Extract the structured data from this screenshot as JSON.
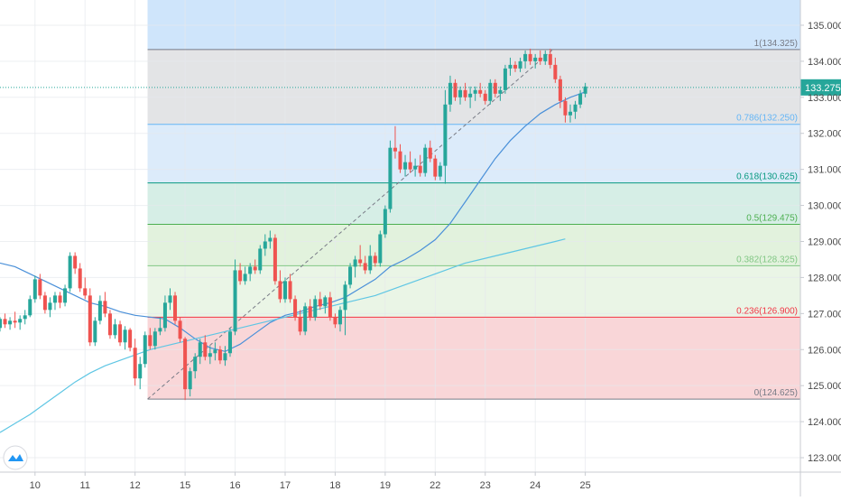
{
  "chart_data": {
    "type": "candlestick",
    "y_axis": {
      "range": [
        122.6,
        135.7
      ],
      "ticks": [
        "123.000",
        "124.000",
        "125.000",
        "126.000",
        "127.000",
        "128.000",
        "129.000",
        "130.000",
        "131.000",
        "132.000",
        "133.000",
        "134.000",
        "135.000"
      ],
      "tick_values": [
        123,
        124,
        125,
        126,
        127,
        128,
        129,
        130,
        131,
        132,
        133,
        134,
        135
      ]
    },
    "x_axis": {
      "range": [
        9.3,
        25.3
      ],
      "ticks": [
        "10",
        "11",
        "12",
        "15",
        "16",
        "17",
        "18",
        "19",
        "22",
        "23",
        "24",
        "25"
      ],
      "tick_values": [
        10,
        11,
        12,
        13,
        14,
        15,
        16,
        17,
        18,
        19,
        20,
        21
      ]
    },
    "grid": true,
    "last_price": {
      "label": "133.275",
      "value": 133.275,
      "color": "#26a69a"
    },
    "fib_levels": [
      {
        "ratio": 1,
        "price": 134.325,
        "label": "1(134.325)",
        "color": "#787b86"
      },
      {
        "ratio": 0.786,
        "price": 132.25,
        "label": "0.786(132.250)",
        "color": "#64b5f6"
      },
      {
        "ratio": 0.618,
        "price": 130.625,
        "label": "0.618(130.625)",
        "color": "#089981"
      },
      {
        "ratio": 0.5,
        "price": 129.475,
        "label": "0.5(129.475)",
        "color": "#4caf50"
      },
      {
        "ratio": 0.382,
        "price": 128.325,
        "label": "0.382(128.325)",
        "color": "#81c784"
      },
      {
        "ratio": 0.236,
        "price": 126.9,
        "label": "0.236(126.900)",
        "color": "#f23645"
      },
      {
        "ratio": 0,
        "price": 124.625,
        "label": "0(124.625)",
        "color": "#787b86"
      }
    ],
    "fib_start_x": 12.25,
    "fib_trend": {
      "from": [
        12.25,
        124.625
      ],
      "to": [
        20.35,
        134.325
      ]
    },
    "zone_colors": {
      "above_1": "#cfe5fb",
      "1_to_0786": "#e3e4e6",
      "0786_to_0618": "#dcebfa",
      "0618_to_05": "#d6eee6",
      "05_to_0382": "#e2f2dd",
      "0382_to_0236": "#eaf5e6",
      "0236_to_0": "#f9d6d8"
    },
    "candles": [
      [
        9.3,
        126.6,
        126.9,
        126.5,
        126.85
      ],
      [
        9.4,
        126.85,
        127.0,
        126.6,
        126.7
      ],
      [
        9.5,
        126.7,
        126.9,
        126.55,
        126.8
      ],
      [
        9.6,
        126.8,
        127.05,
        126.6,
        126.75
      ],
      [
        9.7,
        126.75,
        126.95,
        126.55,
        126.85
      ],
      [
        9.8,
        126.85,
        127.1,
        126.7,
        126.95
      ],
      [
        9.9,
        126.95,
        127.5,
        126.9,
        127.4
      ],
      [
        10.0,
        127.4,
        128.05,
        127.3,
        127.95
      ],
      [
        10.1,
        127.95,
        128.1,
        127.4,
        127.5
      ],
      [
        10.2,
        127.5,
        127.6,
        127.0,
        127.1
      ],
      [
        10.3,
        127.1,
        127.45,
        126.9,
        127.3
      ],
      [
        10.4,
        127.3,
        127.6,
        127.1,
        127.5
      ],
      [
        10.5,
        127.5,
        127.6,
        127.15,
        127.3
      ],
      [
        10.6,
        127.3,
        127.8,
        127.2,
        127.7
      ],
      [
        10.7,
        127.7,
        128.7,
        127.6,
        128.6
      ],
      [
        10.8,
        128.6,
        128.7,
        128.1,
        128.25
      ],
      [
        10.9,
        128.25,
        128.4,
        127.6,
        127.7
      ],
      [
        11.0,
        127.7,
        128.0,
        127.4,
        127.5
      ],
      [
        11.1,
        127.5,
        127.7,
        126.1,
        126.2
      ],
      [
        11.2,
        126.2,
        126.9,
        126.1,
        126.8
      ],
      [
        11.3,
        126.8,
        127.5,
        126.7,
        127.35
      ],
      [
        11.4,
        127.35,
        127.6,
        126.9,
        127.0
      ],
      [
        11.5,
        127.0,
        127.1,
        126.3,
        126.4
      ],
      [
        11.6,
        126.4,
        126.85,
        126.3,
        126.7
      ],
      [
        11.7,
        126.7,
        126.8,
        126.1,
        126.2
      ],
      [
        11.8,
        126.2,
        126.65,
        126.0,
        126.55
      ],
      [
        11.9,
        126.55,
        126.6,
        125.95,
        126.05
      ],
      [
        12.0,
        126.05,
        126.3,
        125.0,
        125.2
      ],
      [
        12.1,
        125.2,
        125.8,
        124.9,
        125.6
      ],
      [
        12.2,
        125.6,
        126.5,
        125.5,
        126.4
      ],
      [
        12.3,
        126.4,
        126.6,
        126.0,
        126.1
      ],
      [
        12.4,
        126.1,
        126.6,
        126.0,
        126.5
      ],
      [
        12.5,
        126.5,
        126.9,
        126.4,
        126.6
      ],
      [
        12.6,
        126.6,
        127.5,
        126.5,
        127.3
      ],
      [
        12.7,
        127.3,
        127.7,
        127.1,
        127.5
      ],
      [
        12.8,
        127.5,
        127.6,
        126.7,
        126.8
      ],
      [
        12.9,
        126.8,
        126.9,
        126.2,
        126.3
      ],
      [
        13.0,
        126.3,
        126.35,
        124.6,
        124.9
      ],
      [
        13.1,
        124.9,
        125.5,
        124.7,
        125.4
      ],
      [
        13.2,
        125.4,
        125.9,
        125.2,
        125.8
      ],
      [
        13.3,
        125.8,
        126.3,
        125.6,
        126.2
      ],
      [
        13.4,
        126.2,
        126.4,
        125.7,
        125.8
      ],
      [
        13.5,
        125.8,
        126.1,
        125.6,
        125.9
      ],
      [
        13.6,
        125.9,
        126.2,
        125.7,
        126.0
      ],
      [
        13.7,
        126.0,
        126.1,
        125.6,
        125.7
      ],
      [
        13.8,
        125.7,
        126.1,
        125.55,
        125.9
      ],
      [
        13.9,
        125.9,
        126.6,
        125.8,
        126.5
      ],
      [
        14.0,
        126.5,
        128.5,
        126.4,
        128.2
      ],
      [
        14.1,
        128.2,
        128.4,
        127.8,
        127.9
      ],
      [
        14.2,
        127.9,
        128.3,
        127.8,
        128.1
      ],
      [
        14.3,
        128.1,
        128.4,
        127.9,
        128.3
      ],
      [
        14.4,
        128.3,
        128.5,
        128.1,
        128.2
      ],
      [
        14.5,
        128.2,
        128.9,
        128.1,
        128.8
      ],
      [
        14.6,
        128.8,
        129.2,
        128.6,
        129.0
      ],
      [
        14.7,
        129.0,
        129.3,
        128.8,
        129.1
      ],
      [
        14.8,
        129.1,
        129.2,
        127.8,
        127.9
      ],
      [
        14.9,
        127.9,
        128.2,
        127.3,
        127.4
      ],
      [
        15.0,
        127.4,
        128.0,
        127.3,
        127.9
      ],
      [
        15.1,
        127.9,
        128.1,
        127.3,
        127.4
      ],
      [
        15.2,
        127.4,
        127.5,
        126.8,
        126.9
      ],
      [
        15.3,
        126.9,
        127.1,
        126.4,
        126.5
      ],
      [
        15.4,
        126.5,
        127.3,
        126.4,
        127.2
      ],
      [
        15.5,
        127.2,
        127.4,
        126.8,
        126.9
      ],
      [
        15.6,
        126.9,
        127.5,
        126.8,
        127.4
      ],
      [
        15.7,
        127.4,
        127.6,
        127.1,
        127.2
      ],
      [
        15.8,
        127.2,
        127.5,
        127.0,
        127.45
      ],
      [
        15.9,
        127.45,
        127.6,
        126.8,
        126.9
      ],
      [
        16.0,
        126.9,
        127.0,
        126.6,
        126.7
      ],
      [
        16.1,
        126.7,
        127.2,
        126.5,
        127.1
      ],
      [
        16.2,
        127.1,
        127.9,
        126.4,
        127.8
      ],
      [
        16.3,
        127.8,
        128.4,
        127.7,
        128.3
      ],
      [
        16.4,
        128.3,
        128.6,
        128.0,
        128.5
      ],
      [
        16.5,
        128.5,
        128.9,
        128.3,
        128.4
      ],
      [
        16.6,
        128.4,
        128.6,
        128.1,
        128.2
      ],
      [
        16.7,
        128.2,
        128.9,
        128.1,
        128.6
      ],
      [
        16.8,
        128.6,
        128.7,
        128.3,
        128.4
      ],
      [
        16.9,
        128.4,
        129.3,
        128.3,
        129.2
      ],
      [
        17.0,
        129.2,
        130.0,
        129.1,
        129.9
      ],
      [
        17.1,
        129.9,
        131.8,
        129.8,
        131.6
      ],
      [
        17.2,
        131.6,
        132.2,
        131.3,
        131.5
      ],
      [
        17.3,
        131.5,
        131.7,
        130.9,
        131.0
      ],
      [
        17.4,
        131.0,
        131.4,
        130.8,
        131.2
      ],
      [
        17.5,
        131.2,
        131.5,
        130.9,
        131.0
      ],
      [
        17.6,
        131.0,
        131.3,
        130.8,
        131.1
      ],
      [
        17.7,
        131.1,
        131.4,
        130.8,
        130.9
      ],
      [
        17.8,
        130.9,
        131.7,
        130.8,
        131.6
      ],
      [
        17.9,
        131.6,
        131.8,
        131.2,
        131.3
      ],
      [
        18.0,
        131.3,
        131.4,
        130.7,
        130.8
      ],
      [
        18.1,
        130.8,
        131.2,
        130.7,
        131.1
      ],
      [
        18.2,
        131.1,
        133.2,
        130.6,
        132.8
      ],
      [
        18.3,
        132.8,
        133.6,
        132.6,
        133.4
      ],
      [
        18.4,
        133.4,
        133.5,
        132.9,
        133.0
      ],
      [
        18.5,
        133.0,
        133.3,
        132.8,
        133.2
      ],
      [
        18.6,
        133.2,
        133.4,
        132.9,
        133.0
      ],
      [
        18.7,
        133.0,
        133.3,
        132.7,
        133.1
      ],
      [
        18.8,
        133.1,
        133.3,
        132.9,
        133.2
      ],
      [
        18.9,
        133.2,
        133.4,
        133.0,
        133.1
      ],
      [
        19.0,
        133.1,
        133.2,
        132.8,
        132.9
      ],
      [
        19.1,
        132.9,
        133.5,
        132.8,
        133.4
      ],
      [
        19.2,
        133.4,
        133.5,
        133.0,
        133.1
      ],
      [
        19.3,
        133.1,
        133.3,
        132.9,
        133.2
      ],
      [
        19.4,
        133.2,
        133.9,
        133.1,
        133.8
      ],
      [
        19.5,
        133.8,
        134.1,
        133.6,
        133.9
      ],
      [
        19.6,
        133.9,
        134.0,
        133.7,
        133.8
      ],
      [
        19.7,
        133.8,
        134.1,
        133.7,
        134.0
      ],
      [
        19.8,
        134.0,
        134.3,
        133.8,
        134.2
      ],
      [
        19.9,
        134.2,
        134.35,
        133.9,
        134.0
      ],
      [
        20.0,
        134.0,
        134.2,
        133.8,
        134.1
      ],
      [
        20.1,
        134.1,
        134.3,
        133.9,
        134.0
      ],
      [
        20.2,
        134.0,
        134.3,
        133.9,
        134.2
      ],
      [
        20.3,
        134.2,
        134.35,
        133.8,
        133.9
      ],
      [
        20.4,
        133.9,
        134.1,
        133.4,
        133.5
      ],
      [
        20.5,
        133.5,
        133.6,
        132.7,
        132.9
      ],
      [
        20.6,
        132.9,
        133.0,
        132.3,
        132.5
      ],
      [
        20.7,
        132.5,
        132.8,
        132.3,
        132.6
      ],
      [
        20.8,
        132.6,
        132.9,
        132.4,
        132.8
      ],
      [
        20.9,
        132.8,
        133.2,
        132.7,
        133.1
      ],
      [
        21.0,
        133.1,
        133.4,
        133.0,
        133.3
      ]
    ],
    "ma_series": [
      {
        "color": "#4a90d9",
        "points": [
          [
            9.3,
            128.4
          ],
          [
            9.6,
            128.3
          ],
          [
            9.9,
            128.1
          ],
          [
            10.2,
            127.9
          ],
          [
            10.5,
            127.7
          ],
          [
            10.8,
            127.5
          ],
          [
            11.1,
            127.3
          ],
          [
            11.4,
            127.2
          ],
          [
            11.7,
            127.05
          ],
          [
            12.0,
            126.95
          ],
          [
            12.3,
            126.9
          ],
          [
            12.6,
            126.85
          ],
          [
            12.9,
            126.6
          ],
          [
            13.2,
            126.3
          ],
          [
            13.5,
            126.05
          ],
          [
            13.8,
            125.95
          ],
          [
            14.1,
            126.15
          ],
          [
            14.4,
            126.45
          ],
          [
            14.7,
            126.75
          ],
          [
            15.0,
            126.95
          ],
          [
            15.3,
            127.05
          ],
          [
            15.6,
            127.2
          ],
          [
            15.9,
            127.3
          ],
          [
            16.2,
            127.45
          ],
          [
            16.5,
            127.7
          ],
          [
            16.8,
            127.95
          ],
          [
            17.1,
            128.3
          ],
          [
            17.4,
            128.5
          ],
          [
            17.7,
            128.75
          ],
          [
            18.0,
            129.05
          ],
          [
            18.3,
            129.5
          ],
          [
            18.6,
            130.1
          ],
          [
            18.9,
            130.7
          ],
          [
            19.2,
            131.3
          ],
          [
            19.5,
            131.8
          ],
          [
            19.8,
            132.2
          ],
          [
            20.1,
            132.55
          ],
          [
            20.4,
            132.8
          ],
          [
            20.7,
            133.0
          ],
          [
            21.0,
            133.15
          ]
        ]
      },
      {
        "color": "#5fc6e4",
        "points": [
          [
            9.3,
            123.7
          ],
          [
            9.6,
            123.95
          ],
          [
            9.9,
            124.2
          ],
          [
            10.2,
            124.5
          ],
          [
            10.5,
            124.8
          ],
          [
            10.8,
            125.1
          ],
          [
            11.1,
            125.35
          ],
          [
            11.4,
            125.55
          ],
          [
            11.7,
            125.7
          ],
          [
            12.0,
            125.85
          ],
          [
            12.3,
            126.0
          ],
          [
            12.6,
            126.1
          ],
          [
            12.9,
            126.2
          ],
          [
            13.2,
            126.3
          ],
          [
            13.5,
            126.4
          ],
          [
            13.8,
            126.5
          ],
          [
            14.1,
            126.6
          ],
          [
            14.4,
            126.7
          ],
          [
            14.7,
            126.8
          ],
          [
            15.0,
            126.9
          ],
          [
            15.3,
            127.0
          ],
          [
            15.6,
            127.1
          ],
          [
            15.9,
            127.2
          ],
          [
            16.2,
            127.3
          ],
          [
            16.5,
            127.4
          ],
          [
            16.8,
            127.5
          ],
          [
            17.1,
            127.65
          ],
          [
            17.4,
            127.8
          ],
          [
            17.7,
            127.95
          ],
          [
            18.0,
            128.1
          ],
          [
            18.3,
            128.25
          ],
          [
            18.6,
            128.4
          ],
          [
            18.9,
            128.5
          ],
          [
            19.2,
            128.6
          ],
          [
            19.5,
            128.7
          ],
          [
            19.8,
            128.8
          ],
          [
            20.1,
            128.9
          ],
          [
            20.4,
            129.0
          ],
          [
            20.6,
            129.07
          ]
        ]
      }
    ]
  },
  "logo": {
    "name": "tradingview-logo"
  }
}
